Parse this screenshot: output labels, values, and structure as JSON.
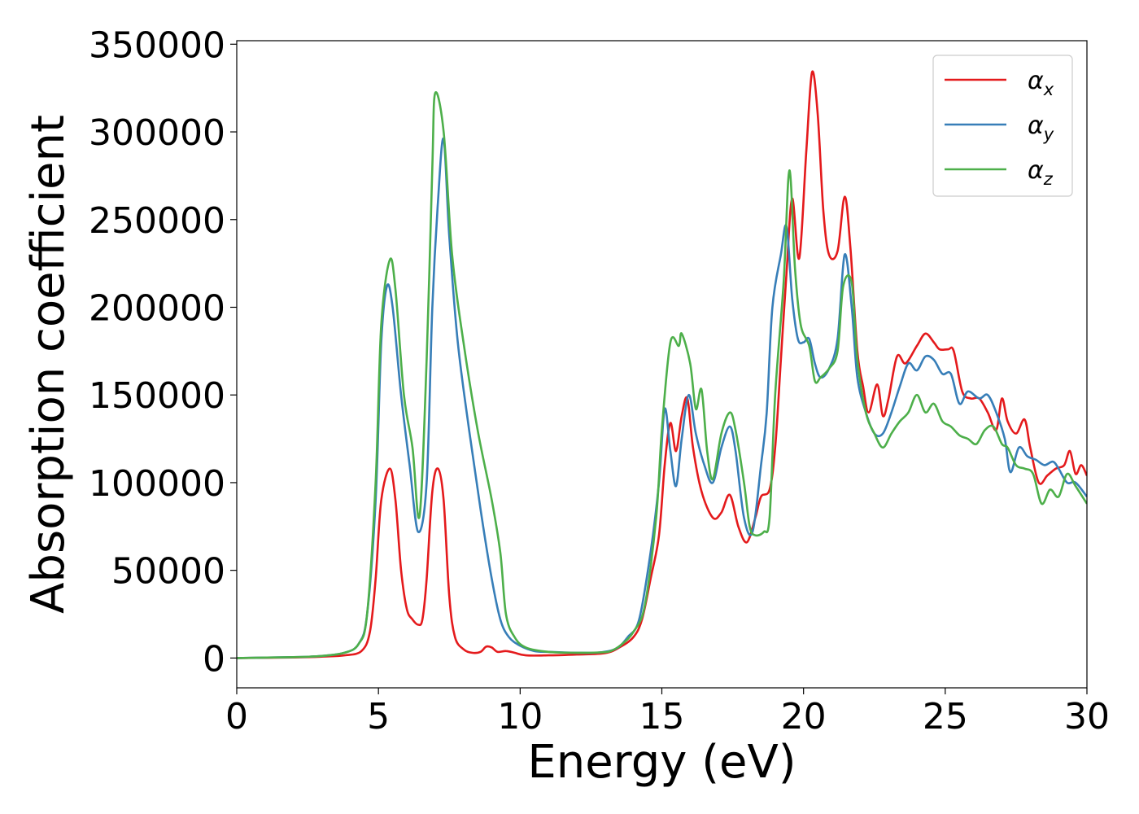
{
  "chart_data": {
    "type": "line",
    "title": "",
    "xlabel": "Energy (eV)",
    "ylabel": "Absorption coefficient",
    "xlim": [
      0,
      30
    ],
    "ylim": [
      -17000,
      352000
    ],
    "xticks": [
      0,
      5,
      10,
      15,
      20,
      25,
      30
    ],
    "yticks": [
      0,
      50000,
      100000,
      150000,
      200000,
      250000,
      300000,
      350000
    ],
    "grid": false,
    "legend_position": "top-right",
    "series": [
      {
        "name": "α_x",
        "legend_base": "α",
        "legend_sub": "x",
        "color": "#e41a1c",
        "points": [
          [
            0,
            0
          ],
          [
            2,
            300
          ],
          [
            3,
            800
          ],
          [
            3.8,
            1500
          ],
          [
            4.4,
            4000
          ],
          [
            4.7,
            15000
          ],
          [
            4.9,
            45000
          ],
          [
            5.1,
            90000
          ],
          [
            5.4,
            108000
          ],
          [
            5.6,
            90000
          ],
          [
            5.8,
            50000
          ],
          [
            6.0,
            28000
          ],
          [
            6.2,
            22000
          ],
          [
            6.4,
            19000
          ],
          [
            6.55,
            22000
          ],
          [
            6.7,
            45000
          ],
          [
            6.9,
            95000
          ],
          [
            7.1,
            108000
          ],
          [
            7.3,
            90000
          ],
          [
            7.5,
            35000
          ],
          [
            7.7,
            12000
          ],
          [
            8.0,
            5000
          ],
          [
            8.3,
            3000
          ],
          [
            8.6,
            3500
          ],
          [
            8.8,
            6500
          ],
          [
            9.0,
            6000
          ],
          [
            9.2,
            3500
          ],
          [
            9.5,
            4000
          ],
          [
            9.8,
            3000
          ],
          [
            10.2,
            1500
          ],
          [
            11,
            1500
          ],
          [
            12,
            2000
          ],
          [
            13,
            2800
          ],
          [
            13.5,
            6000
          ],
          [
            14,
            12000
          ],
          [
            14.3,
            22000
          ],
          [
            14.6,
            45000
          ],
          [
            14.9,
            70000
          ],
          [
            15.1,
            110000
          ],
          [
            15.3,
            134000
          ],
          [
            15.5,
            118000
          ],
          [
            15.7,
            138000
          ],
          [
            15.9,
            148000
          ],
          [
            16.1,
            120000
          ],
          [
            16.4,
            95000
          ],
          [
            16.8,
            80000
          ],
          [
            17.1,
            83000
          ],
          [
            17.4,
            93000
          ],
          [
            17.7,
            75000
          ],
          [
            18.0,
            66000
          ],
          [
            18.3,
            80000
          ],
          [
            18.5,
            92000
          ],
          [
            18.8,
            96000
          ],
          [
            19.0,
            120000
          ],
          [
            19.2,
            170000
          ],
          [
            19.4,
            220000
          ],
          [
            19.6,
            262000
          ],
          [
            19.85,
            228000
          ],
          [
            20.1,
            290000
          ],
          [
            20.3,
            334000
          ],
          [
            20.5,
            310000
          ],
          [
            20.7,
            255000
          ],
          [
            20.9,
            230000
          ],
          [
            21.2,
            232000
          ],
          [
            21.45,
            263000
          ],
          [
            21.65,
            235000
          ],
          [
            21.9,
            175000
          ],
          [
            22.1,
            155000
          ],
          [
            22.3,
            140000
          ],
          [
            22.6,
            156000
          ],
          [
            22.8,
            138000
          ],
          [
            23.0,
            148000
          ],
          [
            23.3,
            172000
          ],
          [
            23.6,
            168000
          ],
          [
            24.0,
            178000
          ],
          [
            24.3,
            185000
          ],
          [
            24.6,
            180000
          ],
          [
            24.8,
            176000
          ],
          [
            25.1,
            176000
          ],
          [
            25.3,
            175000
          ],
          [
            25.6,
            152000
          ],
          [
            25.9,
            148000
          ],
          [
            26.2,
            148000
          ],
          [
            26.5,
            140000
          ],
          [
            26.8,
            130000
          ],
          [
            27.0,
            148000
          ],
          [
            27.2,
            135000
          ],
          [
            27.5,
            128000
          ],
          [
            27.8,
            136000
          ],
          [
            28.0,
            120000
          ],
          [
            28.3,
            100000
          ],
          [
            28.6,
            104000
          ],
          [
            28.9,
            108000
          ],
          [
            29.2,
            110000
          ],
          [
            29.4,
            118000
          ],
          [
            29.6,
            105000
          ],
          [
            29.8,
            110000
          ],
          [
            30.0,
            104000
          ]
        ]
      },
      {
        "name": "α_y",
        "legend_base": "α",
        "legend_sub": "y",
        "color": "#377eb8",
        "points": [
          [
            0,
            0
          ],
          [
            2,
            500
          ],
          [
            3,
            1200
          ],
          [
            3.8,
            3000
          ],
          [
            4.3,
            8000
          ],
          [
            4.6,
            25000
          ],
          [
            4.9,
            90000
          ],
          [
            5.1,
            180000
          ],
          [
            5.3,
            212000
          ],
          [
            5.5,
            200000
          ],
          [
            5.8,
            150000
          ],
          [
            6.1,
            110000
          ],
          [
            6.4,
            72000
          ],
          [
            6.7,
            100000
          ],
          [
            6.9,
            200000
          ],
          [
            7.1,
            260000
          ],
          [
            7.3,
            296000
          ],
          [
            7.5,
            240000
          ],
          [
            7.8,
            180000
          ],
          [
            8.2,
            130000
          ],
          [
            8.6,
            85000
          ],
          [
            9.0,
            45000
          ],
          [
            9.3,
            22000
          ],
          [
            9.6,
            12000
          ],
          [
            10.0,
            7000
          ],
          [
            10.5,
            4000
          ],
          [
            11,
            3500
          ],
          [
            12,
            3000
          ],
          [
            12.8,
            3200
          ],
          [
            13.4,
            5500
          ],
          [
            13.8,
            12000
          ],
          [
            14.2,
            22000
          ],
          [
            14.6,
            60000
          ],
          [
            14.9,
            100000
          ],
          [
            15.1,
            142000
          ],
          [
            15.3,
            118000
          ],
          [
            15.5,
            98000
          ],
          [
            15.7,
            125000
          ],
          [
            15.95,
            150000
          ],
          [
            16.2,
            128000
          ],
          [
            16.5,
            110000
          ],
          [
            16.8,
            100000
          ],
          [
            17.1,
            120000
          ],
          [
            17.4,
            132000
          ],
          [
            17.6,
            118000
          ],
          [
            17.9,
            80000
          ],
          [
            18.2,
            72000
          ],
          [
            18.5,
            110000
          ],
          [
            18.7,
            140000
          ],
          [
            18.9,
            200000
          ],
          [
            19.2,
            230000
          ],
          [
            19.4,
            246000
          ],
          [
            19.6,
            205000
          ],
          [
            19.8,
            182000
          ],
          [
            20.0,
            180000
          ],
          [
            20.2,
            182000
          ],
          [
            20.4,
            168000
          ],
          [
            20.6,
            160000
          ],
          [
            20.9,
            165000
          ],
          [
            21.2,
            182000
          ],
          [
            21.45,
            230000
          ],
          [
            21.7,
            200000
          ],
          [
            21.9,
            160000
          ],
          [
            22.2,
            140000
          ],
          [
            22.5,
            128000
          ],
          [
            22.8,
            128000
          ],
          [
            23.1,
            140000
          ],
          [
            23.4,
            155000
          ],
          [
            23.7,
            168000
          ],
          [
            24.0,
            164000
          ],
          [
            24.3,
            172000
          ],
          [
            24.6,
            170000
          ],
          [
            24.9,
            162000
          ],
          [
            25.2,
            162000
          ],
          [
            25.5,
            145000
          ],
          [
            25.8,
            152000
          ],
          [
            26.2,
            148000
          ],
          [
            26.5,
            150000
          ],
          [
            26.8,
            140000
          ],
          [
            27.1,
            125000
          ],
          [
            27.3,
            106000
          ],
          [
            27.6,
            120000
          ],
          [
            27.9,
            115000
          ],
          [
            28.2,
            113000
          ],
          [
            28.5,
            110000
          ],
          [
            28.8,
            112000
          ],
          [
            29.0,
            108000
          ],
          [
            29.3,
            100000
          ],
          [
            29.6,
            100000
          ],
          [
            30.0,
            92000
          ]
        ]
      },
      {
        "name": "α_z",
        "legend_base": "α",
        "legend_sub": "z",
        "color": "#4daf4a",
        "points": [
          [
            0,
            0
          ],
          [
            2,
            500
          ],
          [
            3,
            1200
          ],
          [
            3.8,
            3000
          ],
          [
            4.3,
            8000
          ],
          [
            4.6,
            25000
          ],
          [
            4.9,
            100000
          ],
          [
            5.1,
            190000
          ],
          [
            5.4,
            227000
          ],
          [
            5.6,
            210000
          ],
          [
            5.9,
            150000
          ],
          [
            6.2,
            120000
          ],
          [
            6.45,
            81000
          ],
          [
            6.7,
            170000
          ],
          [
            6.9,
            280000
          ],
          [
            7.0,
            322000
          ],
          [
            7.3,
            300000
          ],
          [
            7.6,
            230000
          ],
          [
            8.0,
            180000
          ],
          [
            8.5,
            130000
          ],
          [
            9.0,
            90000
          ],
          [
            9.3,
            60000
          ],
          [
            9.5,
            25000
          ],
          [
            9.8,
            12000
          ],
          [
            10.2,
            6000
          ],
          [
            11,
            3500
          ],
          [
            12,
            3000
          ],
          [
            12.8,
            3200
          ],
          [
            13.2,
            4000
          ],
          [
            13.6,
            8000
          ],
          [
            14.0,
            15000
          ],
          [
            14.4,
            30000
          ],
          [
            14.8,
            80000
          ],
          [
            15.0,
            130000
          ],
          [
            15.3,
            180000
          ],
          [
            15.6,
            178000
          ],
          [
            15.7,
            185000
          ],
          [
            16.0,
            168000
          ],
          [
            16.2,
            142000
          ],
          [
            16.4,
            153000
          ],
          [
            16.6,
            118000
          ],
          [
            16.8,
            102000
          ],
          [
            17.1,
            128000
          ],
          [
            17.4,
            140000
          ],
          [
            17.6,
            130000
          ],
          [
            17.9,
            100000
          ],
          [
            18.1,
            75000
          ],
          [
            18.3,
            70000
          ],
          [
            18.6,
            72000
          ],
          [
            18.8,
            80000
          ],
          [
            19.0,
            150000
          ],
          [
            19.3,
            215000
          ],
          [
            19.5,
            278000
          ],
          [
            19.7,
            222000
          ],
          [
            19.9,
            190000
          ],
          [
            20.2,
            178000
          ],
          [
            20.4,
            158000
          ],
          [
            20.6,
            160000
          ],
          [
            20.9,
            165000
          ],
          [
            21.2,
            175000
          ],
          [
            21.4,
            212000
          ],
          [
            21.7,
            214000
          ],
          [
            21.9,
            170000
          ],
          [
            22.2,
            140000
          ],
          [
            22.5,
            128000
          ],
          [
            22.8,
            120000
          ],
          [
            23.1,
            128000
          ],
          [
            23.4,
            135000
          ],
          [
            23.7,
            140000
          ],
          [
            24.0,
            150000
          ],
          [
            24.3,
            140000
          ],
          [
            24.6,
            145000
          ],
          [
            24.9,
            135000
          ],
          [
            25.2,
            132000
          ],
          [
            25.5,
            127000
          ],
          [
            25.8,
            125000
          ],
          [
            26.1,
            122000
          ],
          [
            26.4,
            130000
          ],
          [
            26.7,
            132000
          ],
          [
            27.0,
            122000
          ],
          [
            27.2,
            120000
          ],
          [
            27.5,
            110000
          ],
          [
            27.8,
            108000
          ],
          [
            28.1,
            105000
          ],
          [
            28.4,
            88000
          ],
          [
            28.7,
            96000
          ],
          [
            29.0,
            92000
          ],
          [
            29.3,
            105000
          ],
          [
            29.6,
            98000
          ],
          [
            30.0,
            88000
          ]
        ]
      }
    ]
  }
}
